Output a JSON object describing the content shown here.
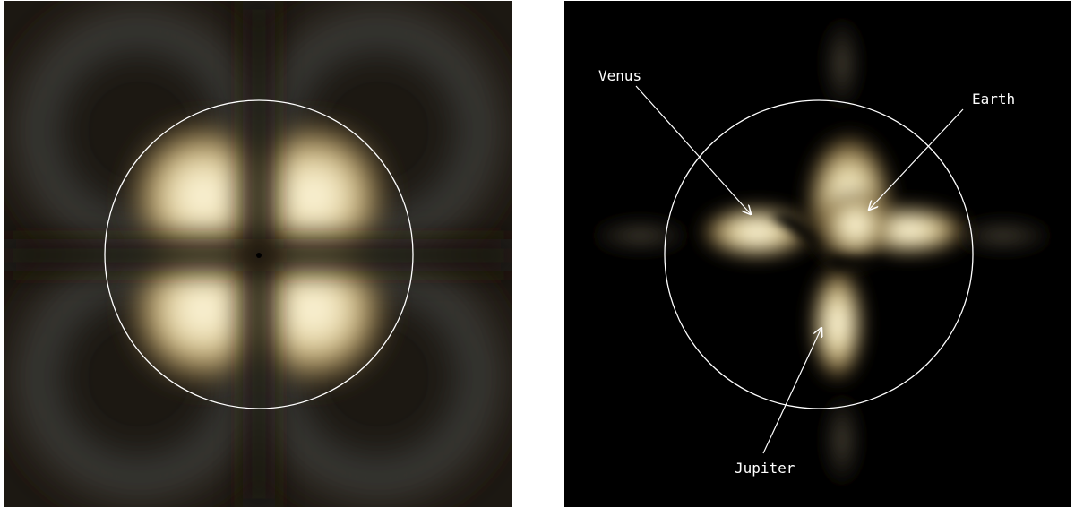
{
  "figure": {
    "left_panel": {
      "kind": "simulated-interference-pattern"
    },
    "right_panel": {
      "kind": "observed-pattern-with-planet-annotations",
      "labels": {
        "venus": "Venus",
        "earth": "Earth",
        "jupiter": "Jupiter"
      }
    }
  },
  "colors": {
    "background": "#ffffff",
    "left_panel_bg": "#1c1812",
    "right_panel_bg": "#000000",
    "glow_core": "#fffae6",
    "glow_mid": "#d4c08c",
    "glow_edge": "#4a3c24",
    "circle": "#ffffff",
    "arrow": "#ffffff",
    "label": "#ffffff"
  }
}
